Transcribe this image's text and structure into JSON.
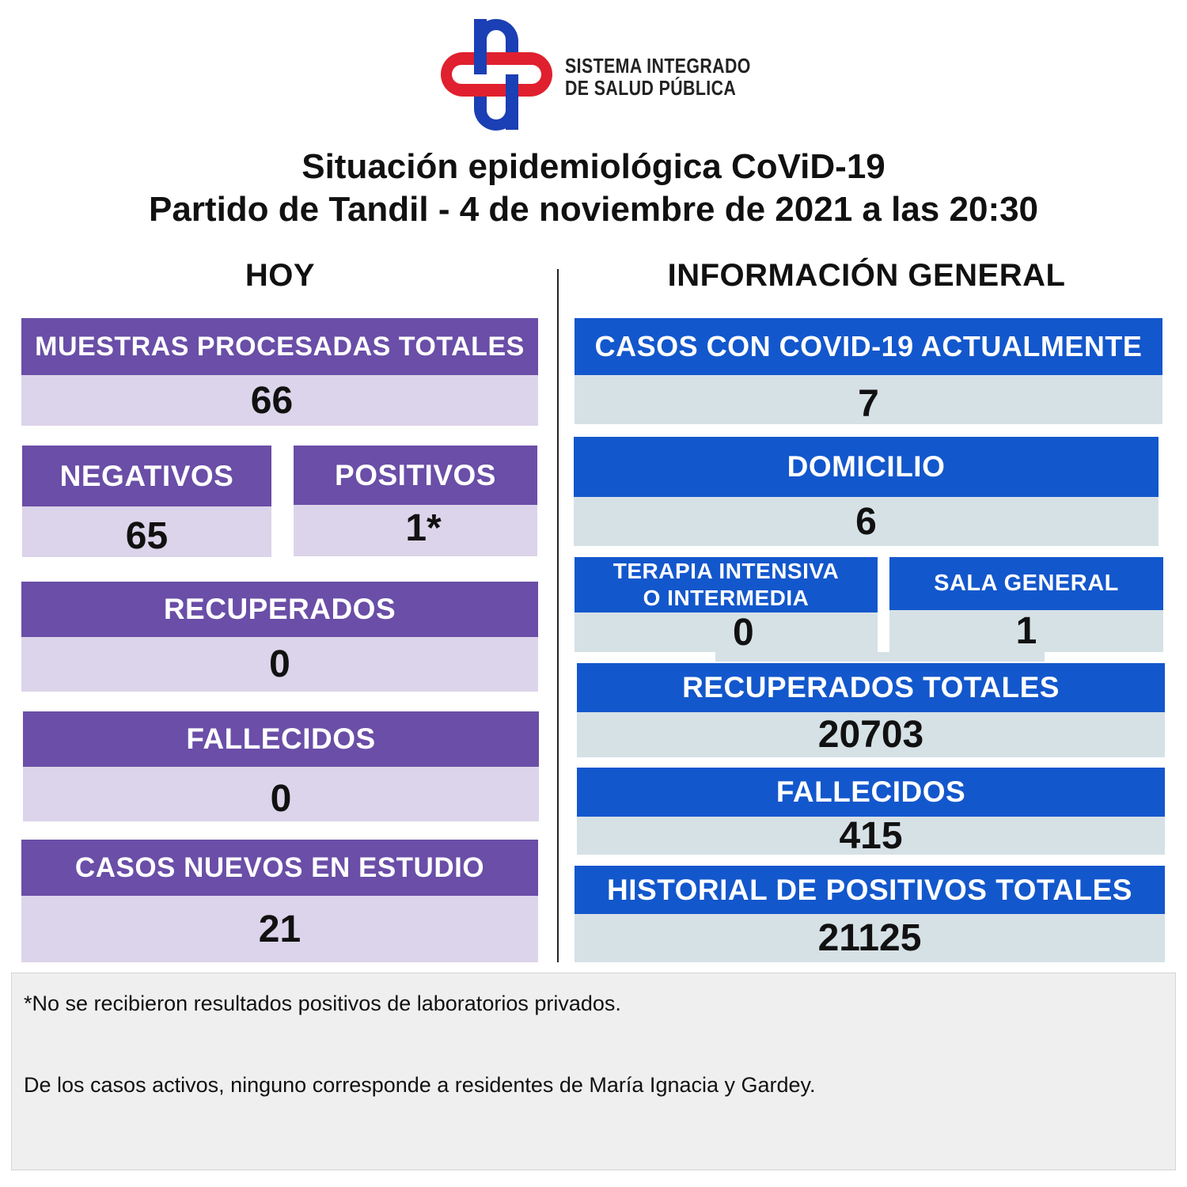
{
  "brand": {
    "logo_line1": "SISTEMA INTEGRADO",
    "logo_line2": "DE SALUD PÚBLICA",
    "colors": {
      "red": "#e0202e",
      "blue": "#1b3fb4"
    }
  },
  "title": {
    "line1": "Situación epidemiológica CoViD-19",
    "line2": "Partido de Tandil - 4 de noviembre de 2021 a las 20:30"
  },
  "hoy": {
    "heading": "HOY",
    "muestras": {
      "label": "MUESTRAS PROCESADAS TOTALES",
      "value": "66"
    },
    "negativos": {
      "label": "NEGATIVOS",
      "value": "65"
    },
    "positivos": {
      "label": "POSITIVOS",
      "value": "1*"
    },
    "recuperados": {
      "label": "RECUPERADOS",
      "value": "0"
    },
    "fallecidos": {
      "label": "FALLECIDOS",
      "value": "0"
    },
    "casos_nuevos": {
      "label": "CASOS NUEVOS EN ESTUDIO",
      "value": "21"
    }
  },
  "general": {
    "heading": "INFORMACIÓN GENERAL",
    "casos_actuales": {
      "label": "CASOS CON COVID-19 ACTUALMENTE",
      "value": "7"
    },
    "domicilio": {
      "label": "DOMICILIO",
      "value": "6"
    },
    "terapia": {
      "label_line1": "TERAPIA INTENSIVA",
      "label_line2": "O INTERMEDIA",
      "value": "0"
    },
    "sala_general": {
      "label": "SALA GENERAL",
      "value": "1"
    },
    "recuperados_totales": {
      "label": "RECUPERADOS TOTALES",
      "value": "20703"
    },
    "fallecidos": {
      "label": "FALLECIDOS",
      "value": "415"
    },
    "historial": {
      "label": "HISTORIAL DE POSITIVOS TOTALES",
      "value": "21125"
    }
  },
  "notes": {
    "line1": "*No se recibieron resultados positivos de laboratorios privados.",
    "line2": "De los casos activos, ninguno corresponde a residentes de María Ignacia y Gardey."
  }
}
